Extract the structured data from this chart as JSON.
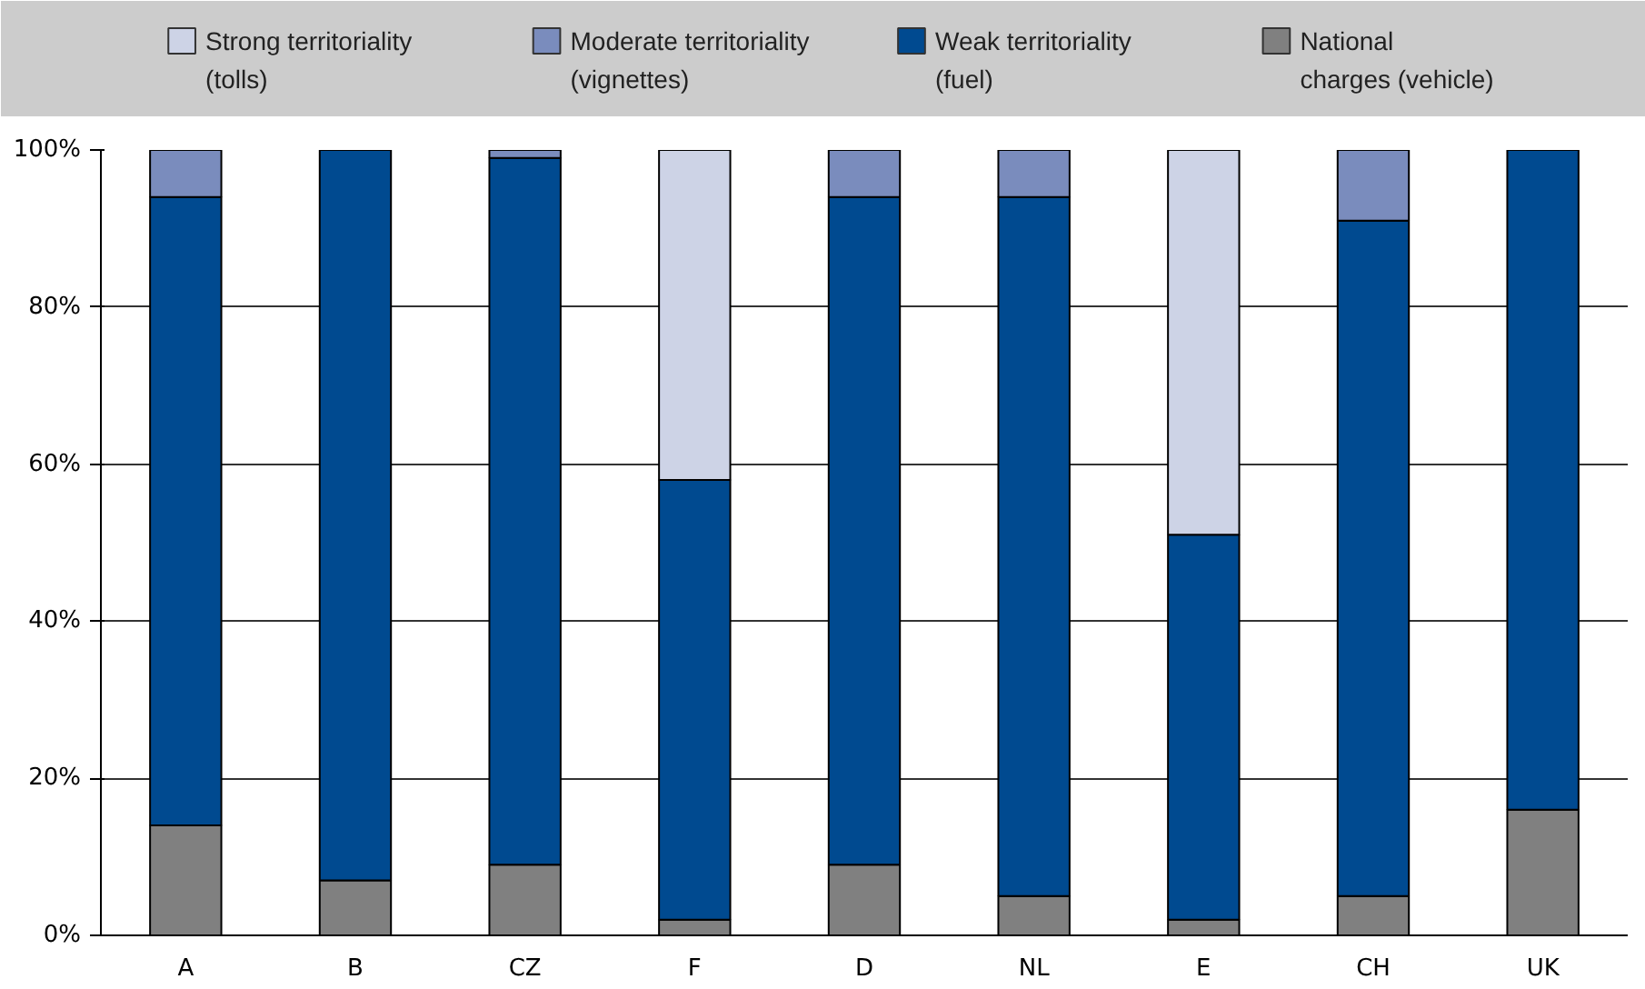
{
  "chart_data": {
    "type": "bar",
    "stacked": true,
    "categories": [
      "A",
      "B",
      "CZ",
      "F",
      "D",
      "NL",
      "E",
      "CH",
      "UK"
    ],
    "series": [
      {
        "name": "National\ncharges (vehicle)",
        "color": "#808080",
        "values": [
          14,
          7,
          9,
          2,
          9,
          5,
          2,
          5,
          16
        ]
      },
      {
        "name": "Weak territoriality\n(fuel)",
        "color": "#004a90",
        "values": [
          80,
          93,
          90,
          56,
          85,
          89,
          49,
          86,
          84
        ]
      },
      {
        "name": "Moderate territoriality\n(vignettes)",
        "color": "#7a8cbd",
        "values": [
          6,
          null,
          1,
          null,
          6,
          6,
          null,
          9,
          null
        ]
      },
      {
        "name": "Strong territoriality\n(tolls)",
        "color": "#cdd3e6",
        "values": [
          null,
          null,
          null,
          42,
          null,
          null,
          49,
          null,
          null
        ]
      }
    ],
    "ylim": [
      0,
      100
    ],
    "yticks": [
      {
        "value": 0,
        "label": "0%"
      },
      {
        "value": 20,
        "label": "20%"
      },
      {
        "value": 40,
        "label": "40%"
      },
      {
        "value": 60,
        "label": "60%"
      },
      {
        "value": 80,
        "label": "80%"
      },
      {
        "value": 100,
        "label": "100%"
      }
    ],
    "grid": "y",
    "legend": "top"
  }
}
